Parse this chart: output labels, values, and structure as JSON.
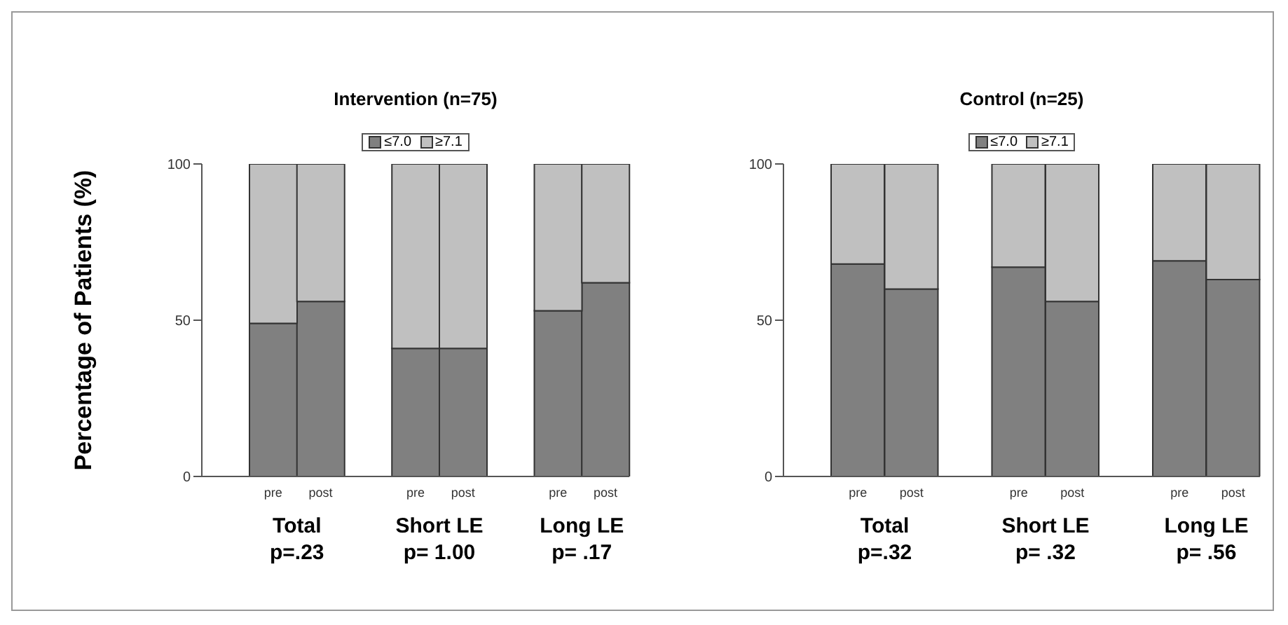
{
  "chart_data": [
    {
      "type": "bar",
      "title": "Intervention (n=75)",
      "ylabel": "Percentage of Patients (%)",
      "stacked": true,
      "legend": "top",
      "categories": [
        "pre",
        "post",
        null,
        "pre",
        "post",
        null,
        "pre",
        "post"
      ],
      "series": [
        {
          "name": "≤7.0",
          "color": "#808080",
          "values": [
            49,
            56,
            null,
            41,
            41,
            null,
            53,
            62
          ]
        },
        {
          "name": "≥7.1",
          "color": "#c0c0c0",
          "values": [
            51,
            44,
            null,
            59,
            59,
            null,
            47,
            38
          ]
        }
      ],
      "ylim": [
        0,
        100
      ],
      "yticks": [
        0,
        50,
        100
      ],
      "grid": false,
      "annotations": [
        "Total",
        "p=.23",
        "Short LE",
        "p= 1.00",
        "Long LE",
        "p= .17"
      ]
    },
    {
      "type": "bar",
      "title": "Control (n=25)",
      "stacked": true,
      "legend": "top",
      "categories": [
        "pre",
        "post",
        null,
        "pre",
        "post",
        null,
        "pre",
        "post"
      ],
      "series": [
        {
          "name": "≤7.0",
          "color": "#808080",
          "values": [
            68,
            60,
            null,
            67,
            56,
            null,
            69,
            63
          ]
        },
        {
          "name": "≥7.1",
          "color": "#c0c0c0",
          "values": [
            32,
            40,
            null,
            33,
            44,
            null,
            31,
            37
          ]
        }
      ],
      "ylim": [
        0,
        100
      ],
      "yticks": [
        0,
        50,
        100
      ],
      "grid": false,
      "annotations": [
        "Total",
        "p=.32",
        "Short LE",
        "p= .32",
        "Long LE",
        "p= .56"
      ]
    }
  ]
}
